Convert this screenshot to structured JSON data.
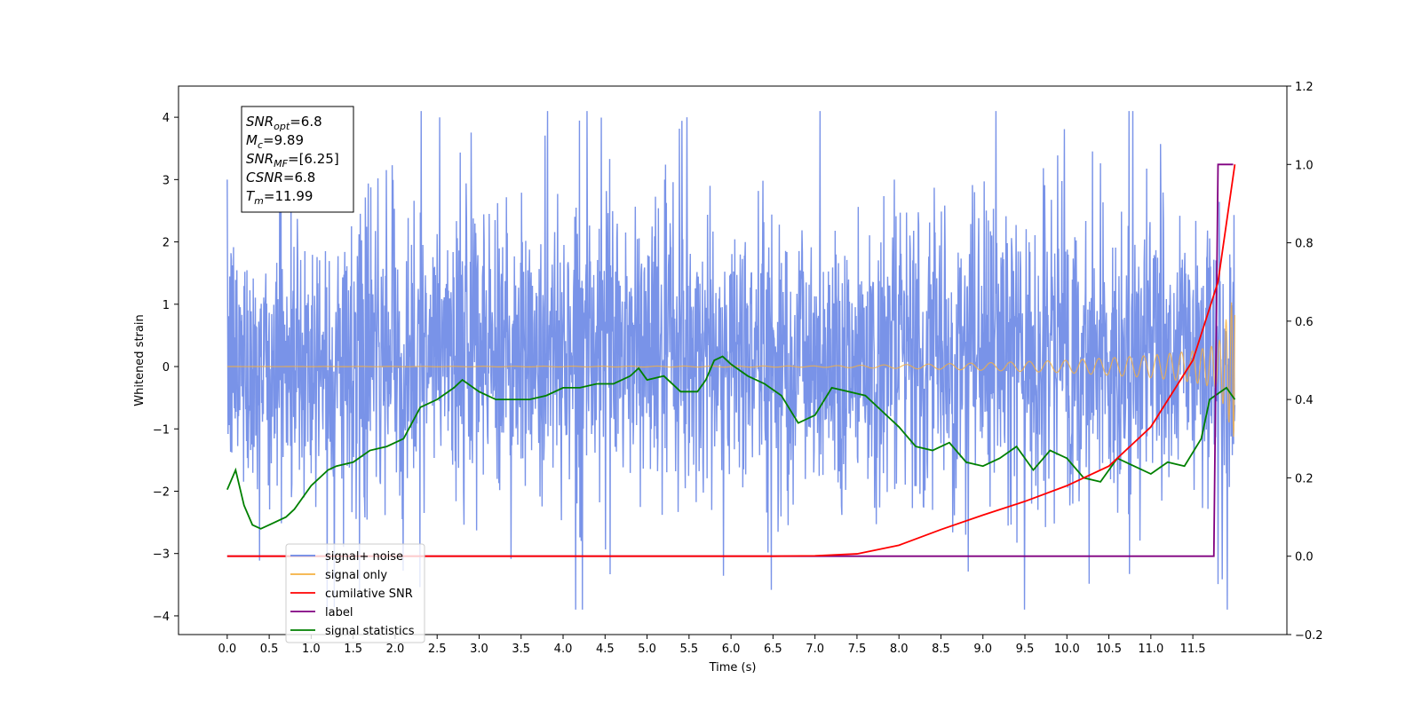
{
  "chart_data": {
    "type": "line",
    "xlabel": "Time (s)",
    "ylabel": "Whitened strain",
    "xlim": [
      -0.58,
      12.62
    ],
    "ylim": [
      -4.3,
      4.5
    ],
    "ylim_right": [
      -0.2,
      1.2
    ],
    "x_ticks": [
      "0.0",
      "0.5",
      "1.0",
      "1.5",
      "2.0",
      "2.5",
      "3.0",
      "3.5",
      "4.0",
      "4.5",
      "5.0",
      "5.5",
      "6.0",
      "6.5",
      "7.0",
      "7.5",
      "8.0",
      "8.5",
      "9.0",
      "9.5",
      "10.0",
      "10.5",
      "11.0",
      "11.5"
    ],
    "y_ticks": [
      "4",
      "3",
      "2",
      "1",
      "0",
      "−1",
      "−2",
      "−3",
      "−4"
    ],
    "y_ticks_right": [
      "1.2",
      "1.0",
      "0.8",
      "0.6",
      "0.4",
      "0.2",
      "0.0",
      "−0.2"
    ],
    "legend_position": "lower-left",
    "grid": false,
    "series": [
      {
        "name": "signal+ noise",
        "axis": "left",
        "color": "#6a87e6",
        "description_stats": {
          "duration_s": 12.0,
          "typical_range": [
            -1.8,
            2.2
          ],
          "peaks_max": 4.1,
          "peaks_min": -3.9
        },
        "x": [
          0.0,
          1.0,
          2.0,
          3.0,
          4.0,
          5.0,
          6.0,
          7.0,
          8.0,
          9.0,
          10.0,
          11.0,
          12.0
        ],
        "y_upper_typical": [
          2.0,
          2.2,
          2.3,
          2.4,
          2.5,
          2.5,
          2.4,
          2.4,
          2.3,
          2.3,
          2.4,
          2.5,
          2.0
        ],
        "y_lower_typical": [
          -1.8,
          -2.0,
          -2.0,
          -2.0,
          -1.9,
          -1.9,
          -2.0,
          -2.0,
          -2.0,
          -1.9,
          -2.0,
          -2.0,
          -2.0
        ]
      },
      {
        "name": "signal only",
        "axis": "left",
        "color": "#f5b041",
        "x": [
          0.0,
          7.0,
          8.0,
          9.0,
          10.0,
          11.0,
          11.5,
          11.8,
          12.0
        ],
        "amplitude": [
          0.0,
          0.01,
          0.03,
          0.06,
          0.1,
          0.18,
          0.25,
          0.35,
          1.2
        ]
      },
      {
        "name": "cumilative SNR",
        "axis": "right",
        "color": "#ff0000",
        "x": [
          0.0,
          6.5,
          7.0,
          7.5,
          8.0,
          8.5,
          9.0,
          9.5,
          10.0,
          10.5,
          11.0,
          11.5,
          11.8,
          12.0
        ],
        "y": [
          0.0,
          0.0,
          0.001,
          0.006,
          0.028,
          0.068,
          0.105,
          0.14,
          0.18,
          0.23,
          0.33,
          0.5,
          0.7,
          1.0
        ]
      },
      {
        "name": "label",
        "axis": "right",
        "color": "#800080",
        "x": [
          0.0,
          11.75,
          11.8,
          11.98
        ],
        "y": [
          0.0,
          0.0,
          1.0,
          1.0
        ]
      },
      {
        "name": "signal statistics",
        "axis": "right",
        "color": "#008000",
        "x": [
          0.0,
          0.1,
          0.2,
          0.3,
          0.4,
          0.5,
          0.7,
          0.8,
          1.0,
          1.2,
          1.3,
          1.5,
          1.7,
          1.9,
          2.1,
          2.3,
          2.5,
          2.7,
          2.8,
          3.0,
          3.2,
          3.4,
          3.6,
          3.8,
          4.0,
          4.2,
          4.4,
          4.6,
          4.8,
          4.9,
          5.0,
          5.2,
          5.4,
          5.6,
          5.7,
          5.8,
          5.9,
          6.0,
          6.2,
          6.4,
          6.6,
          6.8,
          7.0,
          7.2,
          7.4,
          7.6,
          7.8,
          8.0,
          8.2,
          8.4,
          8.6,
          8.8,
          9.0,
          9.2,
          9.4,
          9.6,
          9.8,
          10.0,
          10.2,
          10.4,
          10.6,
          10.8,
          11.0,
          11.2,
          11.4,
          11.6,
          11.7,
          11.9,
          12.0
        ],
        "y": [
          0.17,
          0.22,
          0.13,
          0.08,
          0.07,
          0.08,
          0.1,
          0.12,
          0.18,
          0.22,
          0.23,
          0.24,
          0.27,
          0.28,
          0.3,
          0.38,
          0.4,
          0.43,
          0.45,
          0.42,
          0.4,
          0.4,
          0.4,
          0.41,
          0.43,
          0.43,
          0.44,
          0.44,
          0.46,
          0.48,
          0.45,
          0.46,
          0.42,
          0.42,
          0.45,
          0.5,
          0.51,
          0.49,
          0.46,
          0.44,
          0.41,
          0.34,
          0.36,
          0.43,
          0.42,
          0.41,
          0.37,
          0.33,
          0.28,
          0.27,
          0.29,
          0.24,
          0.23,
          0.25,
          0.28,
          0.22,
          0.27,
          0.25,
          0.2,
          0.19,
          0.25,
          0.23,
          0.21,
          0.24,
          0.23,
          0.3,
          0.4,
          0.43,
          0.4
        ]
      }
    ],
    "annotation": {
      "lines": [
        {
          "base": "SNR",
          "sub": "opt",
          "value": "=6.8"
        },
        {
          "base": "M",
          "sub": "c",
          "value": "=9.89"
        },
        {
          "base": "SNR",
          "sub": "MF",
          "value": "=[6.25]"
        },
        {
          "base": "CSNR",
          "sub": "",
          "value": "=6.8"
        },
        {
          "base": "T",
          "sub": "m",
          "value": "=11.99"
        }
      ]
    }
  },
  "legend": {
    "items": [
      {
        "label": "signal+ noise",
        "color": "#6a87e6"
      },
      {
        "label": "signal only",
        "color": "#f5b041"
      },
      {
        "label": "cumilative SNR",
        "color": "#ff0000"
      },
      {
        "label": "label",
        "color": "#800080"
      },
      {
        "label": "signal statistics",
        "color": "#008000"
      }
    ]
  }
}
